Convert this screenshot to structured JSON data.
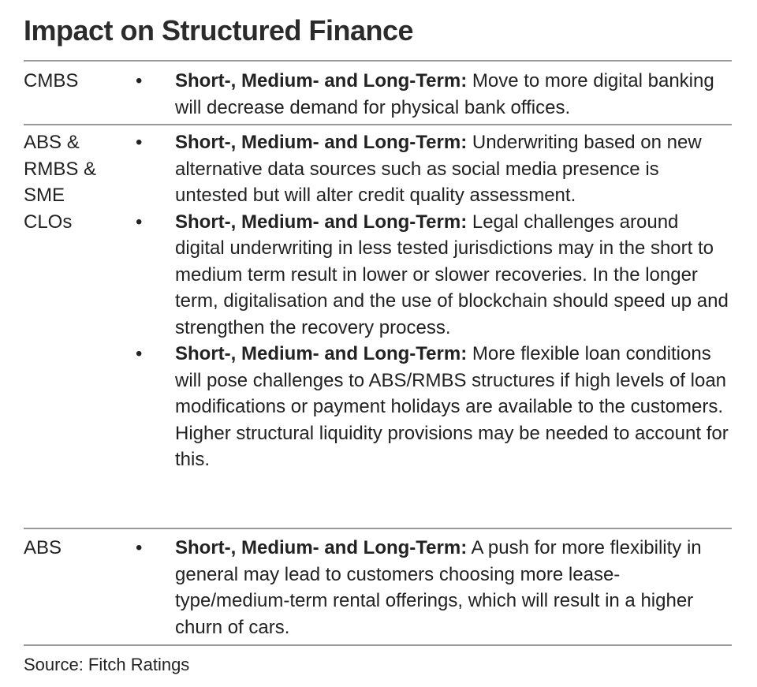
{
  "title": "Impact on Structured Finance",
  "rows": [
    {
      "label": "CMBS",
      "items": [
        {
          "term": "Short-, Medium- and Long-Term:",
          "text": " Move to more digital banking will decrease demand for physical bank offices."
        }
      ]
    },
    {
      "label": "ABS & RMBS & SME CLOs",
      "items": [
        {
          "term": "Short-, Medium- and Long-Term:",
          "text": " Underwriting based on new alternative data sources such as social media presence is untested but will alter credit quality assessment."
        },
        {
          "term": "Short-, Medium- and Long-Term:",
          "text": " Legal challenges around digital underwriting in less tested jurisdictions may in the short to medium term result in lower or slower recoveries. In the longer term, digitalisation and the use of blockchain should speed up and strengthen the recovery process."
        },
        {
          "term": "Short-, Medium- and Long-Term:",
          "text": " More flexible loan conditions will pose challenges to ABS/RMBS structures if high levels of loan modifications or payment holidays are available to the customers. Higher structural liquidity provisions may be needed to account for this."
        }
      ]
    },
    {
      "label": "ABS",
      "items": [
        {
          "term": "Short-, Medium- and Long-Term:",
          "text": " A push for more flexibility in general may lead to customers choosing more lease-type/medium-term rental offerings, which will result in a higher churn of cars."
        }
      ]
    }
  ],
  "source": "Source: Fitch Ratings"
}
